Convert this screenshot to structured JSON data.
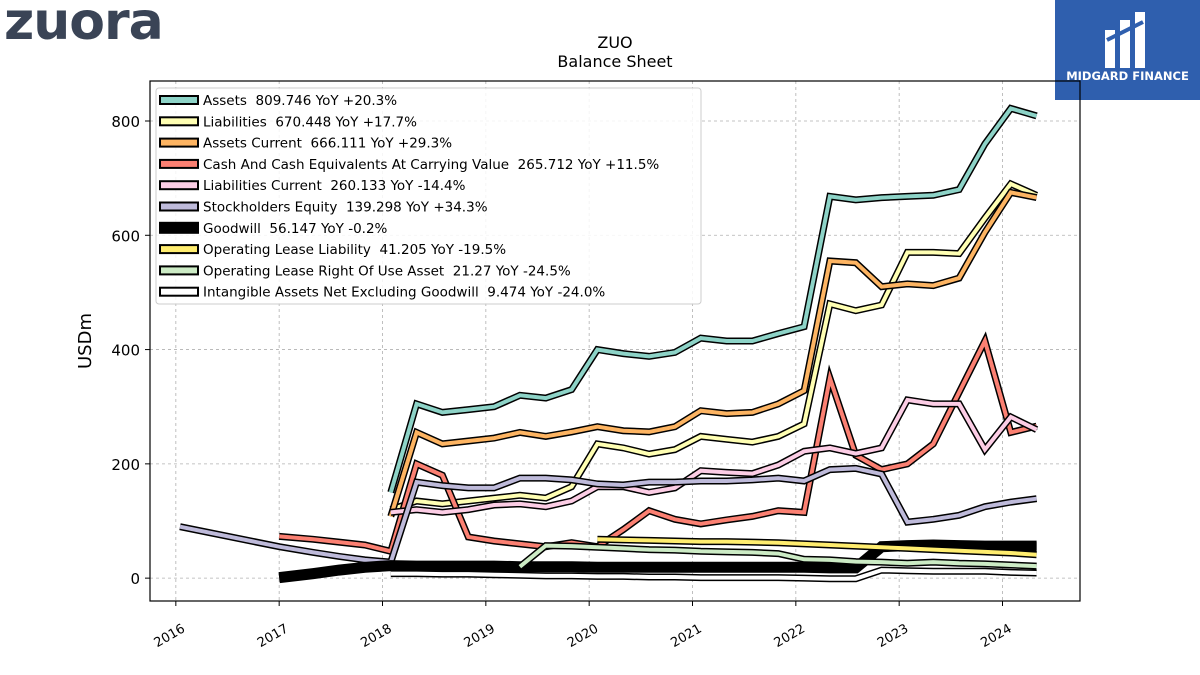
{
  "brand": {
    "logo_text": "zuora",
    "badge_text": "MIDGARD FINANCE"
  },
  "chart_data": {
    "type": "line",
    "title": "ZUO",
    "subtitle": "Balance  Sheet",
    "ylabel": "USDm",
    "xlabel": "",
    "xlim": [
      2015.75,
      2024.75
    ],
    "ylim": [
      -40,
      870
    ],
    "yticks": [
      0,
      200,
      400,
      600,
      800
    ],
    "xticks": [
      2016,
      2017,
      2018,
      2019,
      2020,
      2021,
      2022,
      2023,
      2024
    ],
    "grid": true,
    "legend_position": "top-left",
    "series": [
      {
        "name": "Assets",
        "legend": "Assets  809.746 YoY +20.3%",
        "color": "#8dd3c7",
        "width": 4,
        "x": [
          2018.08,
          2018.33,
          2018.58,
          2018.83,
          2019.08,
          2019.33,
          2019.58,
          2019.83,
          2020.08,
          2020.33,
          2020.58,
          2020.83,
          2021.08,
          2021.33,
          2021.58,
          2021.83,
          2022.08,
          2022.33,
          2022.58,
          2022.83,
          2023.08,
          2023.33,
          2023.58,
          2023.83,
          2024.08,
          2024.33
        ],
        "y": [
          150,
          305,
          290,
          295,
          300,
          320,
          315,
          330,
          400,
          393,
          388,
          395,
          420,
          415,
          415,
          428,
          440,
          668,
          662,
          666,
          668,
          670,
          680,
          760,
          822,
          809
        ]
      },
      {
        "name": "Liabilities",
        "legend": "Liabilities  670.448 YoY +17.7%",
        "color": "#ffffb3",
        "width": 4,
        "x": [
          2018.08,
          2018.33,
          2018.58,
          2018.83,
          2019.08,
          2019.33,
          2019.58,
          2019.83,
          2020.08,
          2020.33,
          2020.58,
          2020.83,
          2021.08,
          2021.33,
          2021.58,
          2021.83,
          2022.08,
          2022.33,
          2022.58,
          2022.83,
          2023.08,
          2023.33,
          2023.58,
          2023.83,
          2024.08,
          2024.33
        ],
        "y": [
          120,
          135,
          130,
          135,
          140,
          145,
          140,
          160,
          235,
          228,
          217,
          225,
          248,
          243,
          238,
          248,
          270,
          480,
          468,
          478,
          570,
          570,
          568,
          630,
          690,
          670
        ]
      },
      {
        "name": "Assets Current",
        "legend": "Assets Current  666.111 YoY +29.3%",
        "color": "#fdb462",
        "width": 4,
        "x": [
          2018.08,
          2018.33,
          2018.58,
          2018.83,
          2019.08,
          2019.33,
          2019.58,
          2019.83,
          2020.08,
          2020.33,
          2020.58,
          2020.83,
          2021.08,
          2021.33,
          2021.58,
          2021.83,
          2022.08,
          2022.33,
          2022.58,
          2022.83,
          2023.08,
          2023.33,
          2023.58,
          2023.83,
          2024.08,
          2024.33
        ],
        "y": [
          108,
          255,
          235,
          240,
          245,
          255,
          248,
          256,
          265,
          258,
          256,
          265,
          293,
          288,
          290,
          305,
          328,
          555,
          552,
          510,
          515,
          512,
          525,
          605,
          675,
          666
        ]
      },
      {
        "name": "Cash And Cash Equivalents At Carrying Value",
        "legend": "Cash And Cash Equivalents At Carrying Value  265.712 YoY +11.5%",
        "color": "#fb8072",
        "width": 4,
        "x": [
          2017.0,
          2017.33,
          2017.58,
          2017.83,
          2018.08,
          2018.33,
          2018.58,
          2018.83,
          2019.08,
          2019.33,
          2019.58,
          2019.83,
          2020.08,
          2020.33,
          2020.58,
          2020.83,
          2021.08,
          2021.33,
          2021.58,
          2021.83,
          2022.08,
          2022.33,
          2022.58,
          2022.83,
          2023.08,
          2023.33,
          2023.58,
          2023.83,
          2024.08,
          2024.33
        ],
        "y": [
          73,
          68,
          63,
          58,
          47,
          200,
          180,
          72,
          65,
          60,
          55,
          62,
          55,
          85,
          118,
          103,
          95,
          102,
          108,
          118,
          115,
          350,
          215,
          190,
          200,
          235,
          325,
          415,
          255,
          266
        ]
      },
      {
        "name": "Liabilities Current",
        "legend": "Liabilities Current  260.133 YoY -14.4%",
        "color": "#fccde5",
        "width": 4,
        "x": [
          2018.08,
          2018.33,
          2018.58,
          2018.83,
          2019.08,
          2019.33,
          2019.58,
          2019.83,
          2020.08,
          2020.33,
          2020.58,
          2020.83,
          2021.08,
          2021.33,
          2021.58,
          2021.83,
          2022.08,
          2022.33,
          2022.58,
          2022.83,
          2023.08,
          2023.33,
          2023.58,
          2023.83,
          2024.08,
          2024.33
        ],
        "y": [
          115,
          120,
          115,
          120,
          128,
          130,
          125,
          135,
          160,
          160,
          150,
          158,
          188,
          185,
          183,
          198,
          222,
          228,
          218,
          228,
          312,
          305,
          305,
          225,
          282,
          260
        ]
      },
      {
        "name": "Stockholders Equity",
        "legend": "Stockholders Equity  139.298 YoY +34.3%",
        "color": "#bebada",
        "width": 4,
        "x": [
          2016.04,
          2017.0,
          2017.33,
          2017.58,
          2017.83,
          2018.08,
          2018.33,
          2018.58,
          2018.83,
          2019.08,
          2019.33,
          2019.58,
          2019.83,
          2020.08,
          2020.33,
          2020.58,
          2020.83,
          2021.08,
          2021.33,
          2021.58,
          2021.83,
          2022.08,
          2022.33,
          2022.58,
          2022.83,
          2023.08,
          2023.33,
          2023.58,
          2023.83,
          2024.08,
          2024.33
        ],
        "y": [
          90,
          55,
          45,
          38,
          32,
          28,
          168,
          162,
          158,
          158,
          175,
          175,
          172,
          165,
          163,
          168,
          168,
          170,
          170,
          172,
          175,
          170,
          190,
          192,
          182,
          98,
          103,
          110,
          125,
          133,
          139
        ]
      },
      {
        "name": "Goodwill",
        "legend": "Goodwill  56.147 YoY -0.2%",
        "color": "#000000",
        "width": 8,
        "x": [
          2017.0,
          2017.33,
          2017.58,
          2017.83,
          2018.08,
          2018.33,
          2018.58,
          2018.83,
          2019.08,
          2019.33,
          2019.58,
          2019.83,
          2020.08,
          2020.33,
          2020.58,
          2020.83,
          2021.08,
          2021.33,
          2021.58,
          2021.83,
          2022.08,
          2022.33,
          2022.58,
          2022.83,
          2023.08,
          2023.33,
          2023.58,
          2023.83,
          2024.08,
          2024.33
        ],
        "y": [
          1,
          8,
          14,
          19,
          22,
          21,
          21,
          21,
          21,
          20,
          20,
          20,
          19,
          19,
          19,
          19,
          19,
          19,
          19,
          19,
          19,
          18,
          18,
          55,
          57,
          58,
          57,
          56,
          56,
          56
        ]
      },
      {
        "name": "Operating Lease Liability",
        "legend": "Operating Lease Liability  41.205 YoY -19.5%",
        "color": "#ffed6f",
        "width": 4,
        "x": [
          2020.08,
          2020.33,
          2020.58,
          2020.83,
          2021.08,
          2021.33,
          2021.58,
          2021.83,
          2022.08,
          2022.33,
          2022.58,
          2022.83,
          2023.08,
          2023.33,
          2023.58,
          2023.83,
          2024.08,
          2024.33
        ],
        "y": [
          68,
          67,
          66,
          65,
          64,
          64,
          63,
          62,
          60,
          58,
          56,
          54,
          52,
          50,
          48,
          46,
          44,
          41
        ]
      },
      {
        "name": "Operating Lease Right Of Use Asset",
        "legend": "Operating Lease Right Of Use Asset  21.27 YoY -24.5%",
        "color": "#ccebc5",
        "width": 4,
        "x": [
          2019.33,
          2019.58,
          2019.83,
          2020.08,
          2020.33,
          2020.58,
          2020.83,
          2021.08,
          2021.33,
          2021.58,
          2021.83,
          2022.08,
          2022.33,
          2022.58,
          2022.83,
          2023.08,
          2023.33,
          2023.58,
          2023.83,
          2024.08,
          2024.33
        ],
        "y": [
          20,
          57,
          56,
          54,
          52,
          50,
          49,
          47,
          46,
          45,
          43,
          33,
          32,
          29,
          28,
          26,
          28,
          26,
          25,
          23,
          21
        ]
      },
      {
        "name": "Intangible Assets Net Excluding Goodwill",
        "legend": "Intangible Assets Net Excluding Goodwill  9.474 YoY -24.0%",
        "color": "#ffffff",
        "width": 4,
        "x": [
          2018.08,
          2018.33,
          2018.58,
          2018.83,
          2019.08,
          2019.33,
          2019.58,
          2019.83,
          2020.08,
          2020.33,
          2020.58,
          2020.83,
          2021.08,
          2021.33,
          2021.58,
          2021.83,
          2022.08,
          2022.33,
          2022.58,
          2022.83,
          2023.08,
          2023.33,
          2023.58,
          2023.83,
          2024.08,
          2024.33
        ],
        "y": [
          8,
          8,
          7,
          7,
          6,
          5,
          4,
          4,
          3,
          3,
          2,
          2,
          1,
          1,
          1,
          1,
          0,
          -1,
          -1,
          14,
          13,
          12,
          12,
          12,
          10,
          9
        ]
      }
    ]
  }
}
